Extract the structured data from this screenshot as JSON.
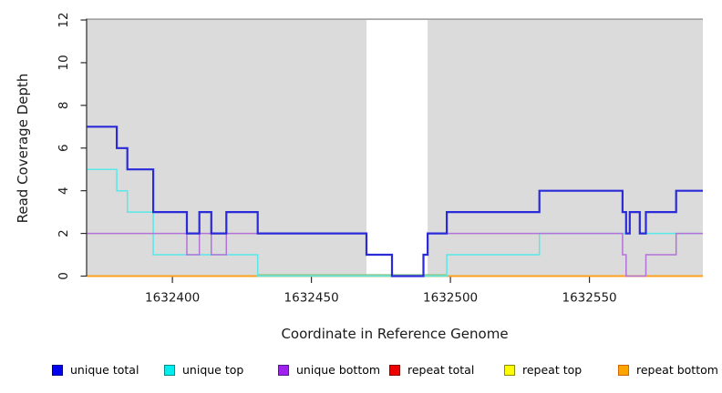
{
  "figure": {
    "background": "#ffffff"
  },
  "chart_data": {
    "type": "line",
    "subtype": "step-coverage",
    "title": "",
    "xlabel": "Coordinate in Reference Genome",
    "ylabel": "Read Coverage Depth",
    "xlim": [
      1632369.3,
      1632590.8
    ],
    "ylim": [
      0,
      12
    ],
    "grid": false,
    "panel_color": "#dbdbdb",
    "panel_top_edge_color": "#a6a6a6",
    "axis_color": "#2b2b2b",
    "x_ticks": [
      {
        "value": 1632400,
        "label": "1632400"
      },
      {
        "value": 1632450,
        "label": "1632450"
      },
      {
        "value": 1632500,
        "label": "1632500"
      },
      {
        "value": 1632550,
        "label": "1632550"
      }
    ],
    "y_ticks": [
      {
        "value": 0,
        "label": "0"
      },
      {
        "value": 2,
        "label": "2"
      },
      {
        "value": 4,
        "label": "4"
      },
      {
        "value": 6,
        "label": "6"
      },
      {
        "value": 8,
        "label": "8"
      },
      {
        "value": 10,
        "label": "10"
      },
      {
        "value": 12,
        "label": "12"
      }
    ],
    "highlight_band": {
      "from": 1632469.8,
      "to": 1632491.8,
      "color": "#ffffff"
    },
    "series": [
      {
        "name": "unique total",
        "color": "#2a2ad9",
        "width": 2.2,
        "z": 7,
        "x_end": 1632590.8,
        "steps": [
          [
            1632369.3,
            7
          ],
          [
            1632380.0,
            6
          ],
          [
            1632383.8,
            5
          ],
          [
            1632393.1,
            3
          ],
          [
            1632405.2,
            2
          ],
          [
            1632409.7,
            3
          ],
          [
            1632414.0,
            2
          ],
          [
            1632419.4,
            3
          ],
          [
            1632430.7,
            2
          ],
          [
            1632469.8,
            1
          ],
          [
            1632479.0,
            0
          ],
          [
            1632490.3,
            1
          ],
          [
            1632491.8,
            2
          ],
          [
            1632498.7,
            3
          ],
          [
            1632532.0,
            4
          ],
          [
            1632561.9,
            3
          ],
          [
            1632563.2,
            2
          ],
          [
            1632564.5,
            3
          ],
          [
            1632568.1,
            2
          ],
          [
            1632570.3,
            3
          ],
          [
            1632581.2,
            4
          ]
        ]
      },
      {
        "name": "unique top",
        "color": "#58e8e8",
        "width": 1.5,
        "z": 5,
        "x_end": 1632590.8,
        "steps": [
          [
            1632369.3,
            5
          ],
          [
            1632380.0,
            4
          ],
          [
            1632383.8,
            3
          ],
          [
            1632393.1,
            1
          ],
          [
            1632430.7,
            0
          ],
          [
            1632498.7,
            1
          ],
          [
            1632532.0,
            2
          ],
          [
            1632564.5,
            3
          ],
          [
            1632568.1,
            2
          ]
        ]
      },
      {
        "name": "unique bottom",
        "color": "#b272d8",
        "width": 1.5,
        "z": 6,
        "x_end": 1632590.8,
        "steps": [
          [
            1632369.3,
            2
          ],
          [
            1632405.2,
            1
          ],
          [
            1632409.7,
            2
          ],
          [
            1632414.0,
            1
          ],
          [
            1632419.4,
            2
          ],
          [
            1632469.8,
            1
          ],
          [
            1632479.0,
            0
          ],
          [
            1632490.3,
            1
          ],
          [
            1632491.8,
            2
          ],
          [
            1632561.9,
            1
          ],
          [
            1632563.2,
            0
          ],
          [
            1632570.3,
            1
          ],
          [
            1632581.2,
            2
          ]
        ]
      },
      {
        "name": "repeat total",
        "color": "#dd1111",
        "width": 1.5,
        "z": 1,
        "x_end": 1632590.8,
        "steps": [
          [
            1632369.3,
            0
          ]
        ]
      },
      {
        "name": "repeat top",
        "color": "#ffee00",
        "width": 1.5,
        "z": 2,
        "x_end": 1632590.8,
        "steps": [
          [
            1632369.3,
            0
          ]
        ]
      },
      {
        "name": "repeat bottom",
        "color": "#ff9e1a",
        "width": 1.8,
        "z": 3,
        "x_end": 1632590.8,
        "steps": [
          [
            1632369.3,
            0
          ]
        ]
      }
    ],
    "baseline_overlays": [
      {
        "name": "unique-top-repeat-top-blend",
        "from": 1632430.7,
        "to": 1632498.7,
        "y": 0,
        "color": "#93cd93",
        "width": 1.6,
        "dy": -1.4,
        "z": 4
      }
    ]
  },
  "legend": {
    "items": [
      {
        "label": "unique total",
        "fill": "#0000ee",
        "border": "#00008b"
      },
      {
        "label": "unique top",
        "fill": "#00eeee",
        "border": "#008b8b"
      },
      {
        "label": "unique bottom",
        "fill": "#a020f0",
        "border": "#551a8b"
      },
      {
        "label": "repeat total",
        "fill": "#ee0000",
        "border": "#8b0000"
      },
      {
        "label": "repeat top",
        "fill": "#ffff00",
        "border": "#8b8b00"
      },
      {
        "label": "repeat bottom",
        "fill": "#ffa500",
        "border": "#cd6600"
      }
    ]
  }
}
